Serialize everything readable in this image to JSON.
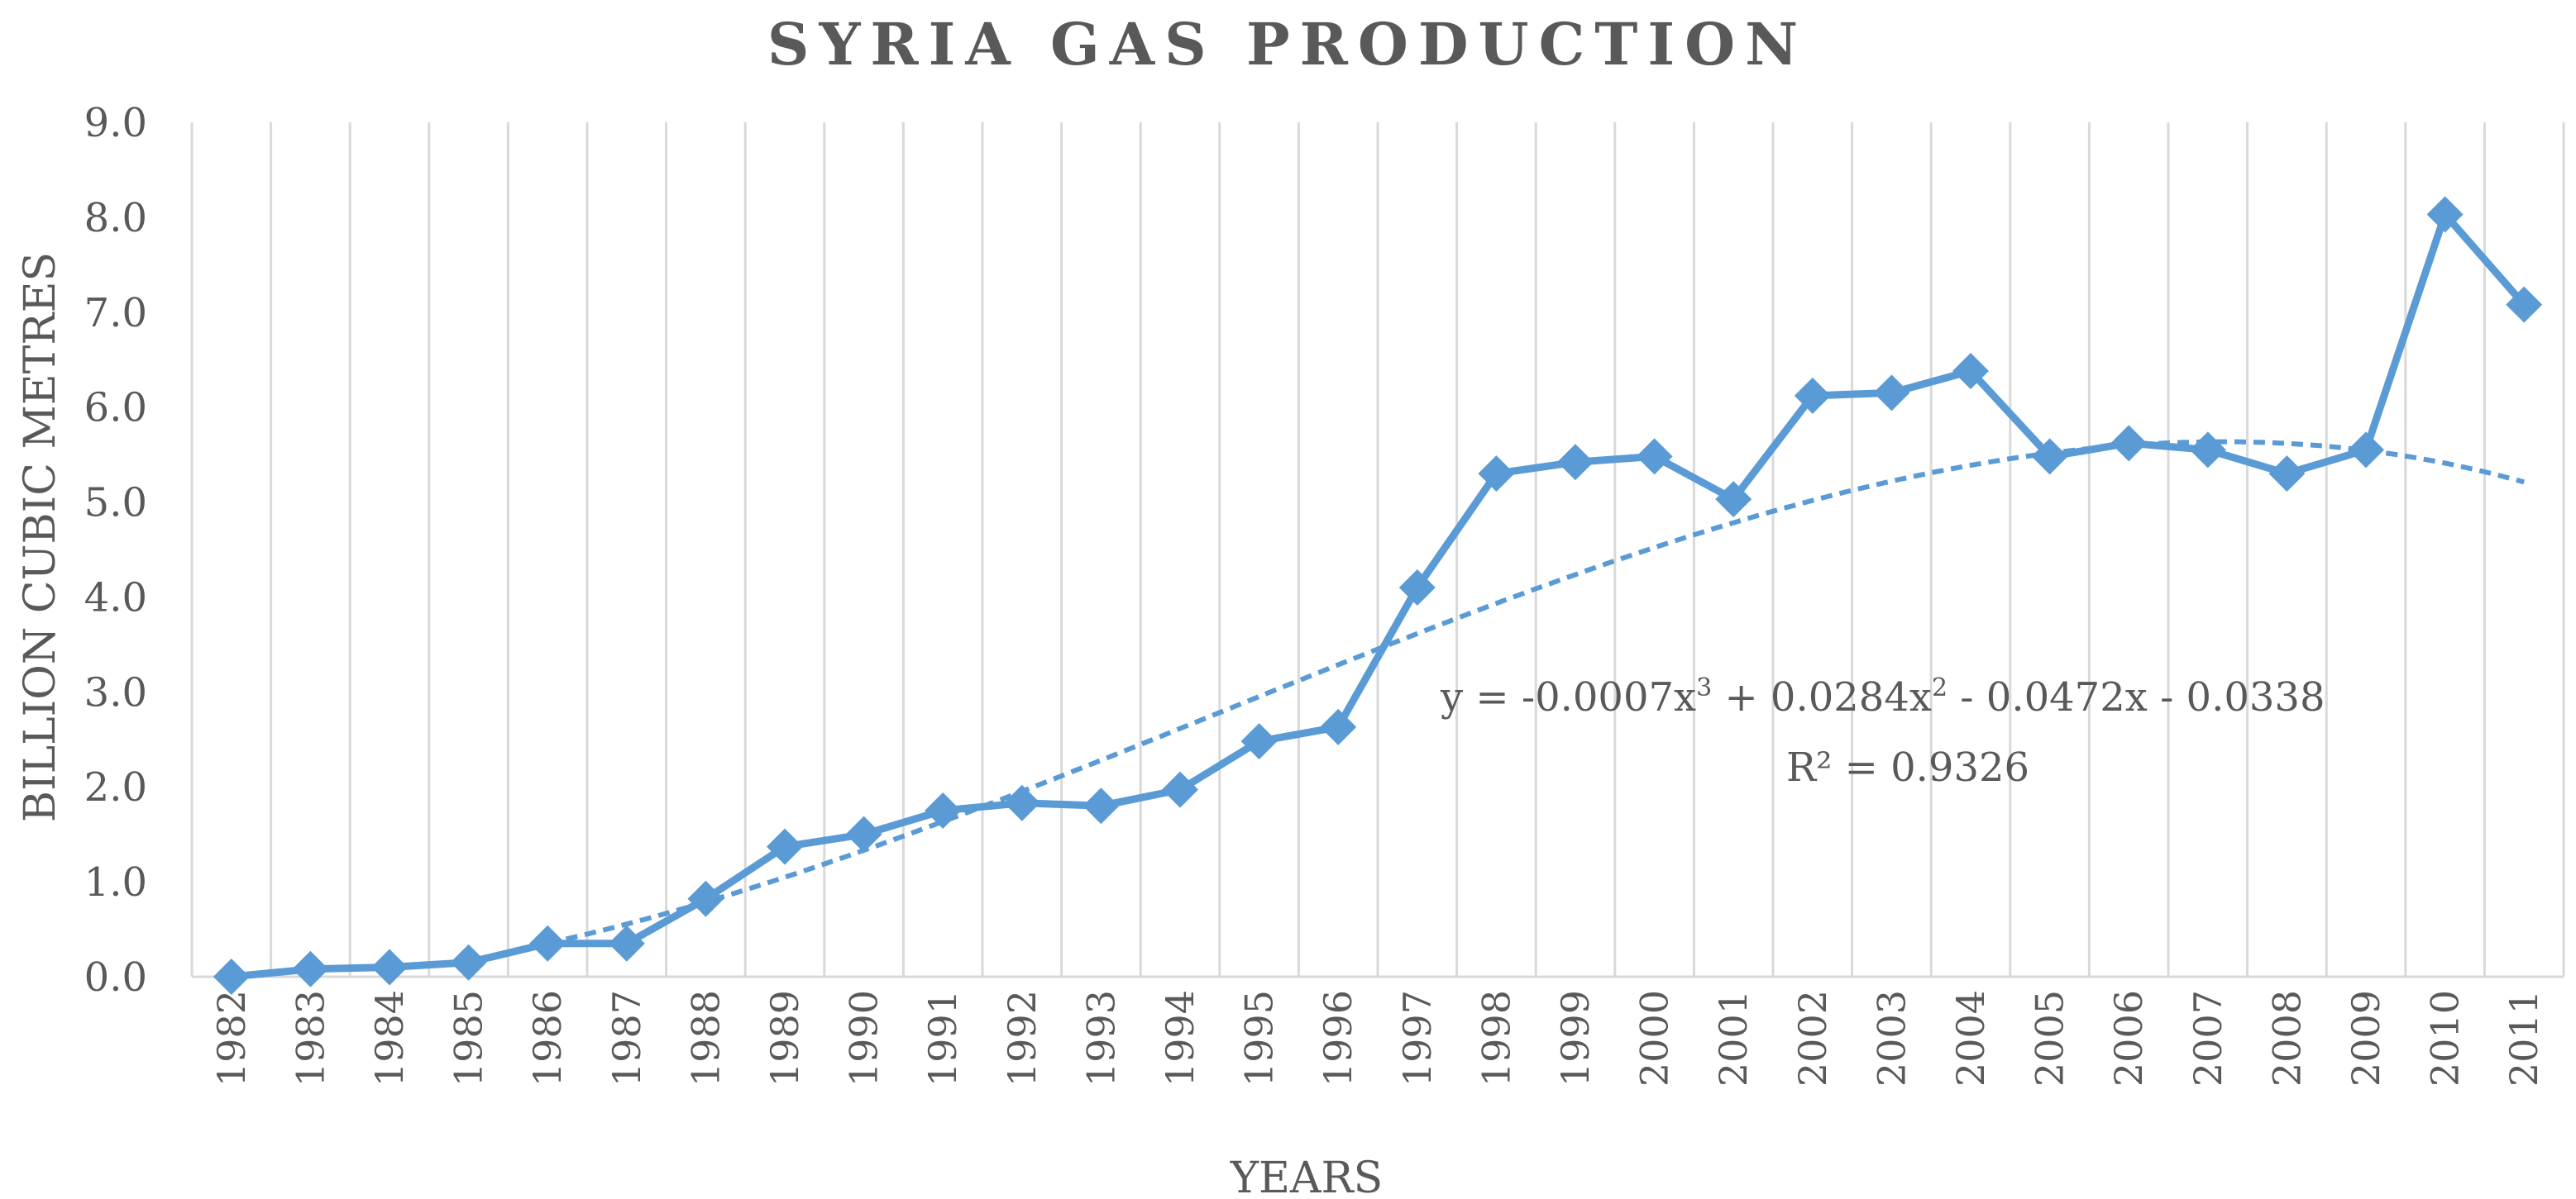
{
  "chart_data": {
    "type": "line",
    "title": "SYRIA GAS PRODUCTION",
    "xlabel": "YEARS",
    "ylabel": "BILLION CUBIC METRES",
    "ylim": [
      0,
      9
    ],
    "yticks": [
      "0.0",
      "1.0",
      "2.0",
      "3.0",
      "4.0",
      "5.0",
      "6.0",
      "7.0",
      "8.0",
      "9.0"
    ],
    "grid": "vertical",
    "categories": [
      "1982",
      "1983",
      "1984",
      "1985",
      "1986",
      "1987",
      "1988",
      "1989",
      "1990",
      "1991",
      "1992",
      "1993",
      "1994",
      "1995",
      "1996",
      "1997",
      "1998",
      "1999",
      "2000",
      "2001",
      "2002",
      "2003",
      "2004",
      "2005",
      "2006",
      "2007",
      "2008",
      "2009",
      "2010",
      "2011"
    ],
    "series": [
      {
        "values": [
          0.0,
          0.08,
          0.1,
          0.15,
          0.35,
          0.35,
          0.82,
          1.37,
          1.5,
          1.75,
          1.83,
          1.8,
          1.97,
          2.48,
          2.63,
          4.1,
          5.3,
          5.42,
          5.48,
          5.03,
          6.12,
          6.15,
          6.38,
          5.48,
          5.62,
          5.55,
          5.3,
          5.55,
          8.03,
          7.08
        ],
        "color": "#5b9bd5",
        "marker": "diamond"
      }
    ],
    "trendline": {
      "type": "polynomial",
      "order": 3,
      "style": "dashed",
      "color": "#5b9bd5",
      "coefficients": [
        -0.0007,
        0.0284,
        -0.0472,
        -0.0338
      ],
      "equation": {
        "prefix": "y = -0.0007x",
        "p3": "3",
        "mid": " + 0.0284x",
        "p2": "2",
        "suffix": " - 0.0472x - 0.0338"
      },
      "r_squared": "R² = 0.9326"
    }
  }
}
